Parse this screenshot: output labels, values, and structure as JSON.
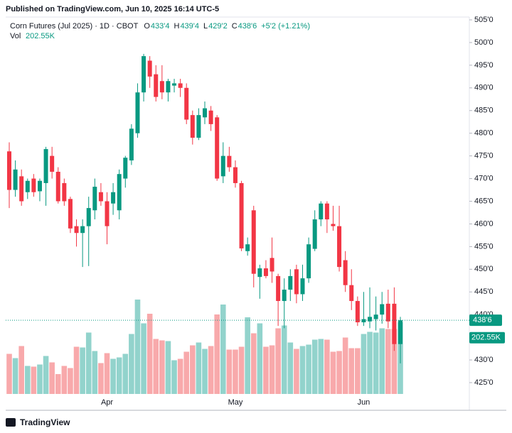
{
  "header": {
    "published": "Published on TradingView.com, Jun 10, 2025 16:14 UTC-5",
    "symbol": "Corn Futures (Jul 2025) · 1D · CBOT",
    "ohlc": [
      {
        "key": "O",
        "value": "433'4"
      },
      {
        "key": "H",
        "value": "439'4"
      },
      {
        "key": "L",
        "value": "429'2"
      },
      {
        "key": "C",
        "value": "438'6"
      }
    ],
    "change": "+5'2 (+1.21%)",
    "volume_key": "Vol",
    "volume_value": "202.55K"
  },
  "chart_data": {
    "type": "candlestick",
    "categories": [
      null,
      null,
      null,
      null,
      null,
      null,
      null,
      null,
      null,
      null,
      null,
      null,
      null,
      null,
      null,
      null,
      "Apr",
      null,
      null,
      null,
      null,
      null,
      null,
      null,
      null,
      null,
      null,
      null,
      null,
      null,
      null,
      null,
      null,
      null,
      null,
      null,
      null,
      "May",
      null,
      null,
      null,
      null,
      null,
      null,
      null,
      null,
      null,
      null,
      null,
      null,
      null,
      null,
      null,
      null,
      null,
      null,
      null,
      null,
      "Jun",
      null,
      null,
      null,
      null,
      null,
      null
    ],
    "open": [
      476,
      467.5,
      470.5,
      467,
      470,
      467.2,
      469,
      475,
      471.5,
      469,
      465.5,
      459.5,
      458,
      459.5,
      463,
      467,
      465,
      464.5,
      463,
      470,
      474,
      480,
      489,
      496,
      493,
      491.5,
      489,
      490.5,
      491,
      490,
      484,
      479,
      483.5,
      485,
      483.5,
      470.5,
      475,
      472.5,
      469,
      454,
      463,
      448.3,
      450.2,
      452.5,
      448.5,
      443,
      445.5,
      450,
      444.5,
      448,
      454.5,
      461,
      464.5,
      460,
      459.5,
      452,
      446.5,
      443,
      438.3,
      438.5,
      439,
      440,
      442.4,
      442.4,
      433.5
    ],
    "high": [
      478,
      474,
      472,
      470,
      471,
      470,
      477,
      477,
      472.5,
      470,
      466,
      461,
      461,
      466,
      470,
      469,
      467,
      469,
      472,
      475,
      482,
      491,
      497.5,
      497,
      495,
      495,
      492,
      492,
      492,
      491,
      485,
      485.5,
      487,
      486,
      484,
      478,
      477,
      474,
      469.5,
      457,
      464,
      451,
      452,
      457,
      449,
      448,
      450,
      451,
      451,
      457,
      463,
      465,
      465,
      464,
      464,
      454,
      450,
      444,
      445,
      446,
      444,
      445,
      445.5,
      446,
      439.5
    ],
    "low": [
      463.5,
      466,
      464,
      465.5,
      466,
      465,
      464,
      470,
      464.5,
      464,
      458,
      455,
      450.5,
      450.7,
      461,
      464,
      455.5,
      462,
      461,
      468,
      473,
      479,
      487,
      490,
      487,
      487.5,
      487,
      489,
      488,
      482,
      477.5,
      478.5,
      482,
      480.5,
      469.5,
      469,
      471.5,
      468,
      454,
      453,
      446,
      443.5,
      448,
      447,
      437.5,
      437,
      443,
      442.5,
      443,
      447,
      454,
      459.5,
      458,
      458.5,
      449.5,
      445,
      441,
      437.5,
      437.5,
      437,
      436.5,
      438,
      437,
      432,
      429.25
    ],
    "close": [
      467.5,
      472,
      465,
      469.5,
      467,
      469.5,
      476.5,
      471.5,
      465,
      465,
      459,
      458,
      459.5,
      463.5,
      468.2,
      465,
      459.5,
      467,
      471,
      474.6,
      481,
      489,
      497,
      492.5,
      488,
      489,
      491.5,
      491,
      490,
      483,
      479,
      484,
      485.5,
      482,
      470,
      475,
      472.5,
      469,
      454.6,
      455.5,
      449,
      450.2,
      448.5,
      449.5,
      443,
      445.5,
      448.5,
      444.5,
      448,
      455.5,
      461,
      464.5,
      461,
      459.5,
      450.5,
      446.5,
      443,
      438.3,
      439,
      439.5,
      440,
      442.3,
      438.5,
      433.5,
      438.75
    ],
    "volume": [
      113000,
      101000,
      135000,
      79000,
      77000,
      83000,
      107000,
      89000,
      56000,
      79000,
      73000,
      133000,
      131000,
      173000,
      121000,
      87000,
      115000,
      99000,
      103000,
      113000,
      169000,
      266000,
      199000,
      226000,
      155000,
      151000,
      149000,
      95000,
      99000,
      119000,
      137000,
      145000,
      127000,
      135000,
      224000,
      252000,
      125000,
      125000,
      133000,
      216000,
      171000,
      199000,
      133000,
      137000,
      185000,
      193000,
      145000,
      127000,
      135000,
      139000,
      153000,
      155000,
      153000,
      119000,
      121000,
      159000,
      129000,
      129000,
      169000,
      175000,
      173000,
      185000,
      183000,
      183000,
      202550
    ],
    "volume_label": "202.55K",
    "last_price_label": "438'6",
    "up_color": "#089981",
    "down_color": "#f23645",
    "volume_up_color": "#92d3cc",
    "volume_down_color": "#f8a9ab",
    "ylim": [
      423.5,
      506.5
    ],
    "yticks": [
      {
        "value": 425,
        "label": "425'0"
      },
      {
        "value": 430,
        "label": "430'0"
      },
      {
        "value": 435,
        "label": "435'0"
      },
      {
        "value": 440,
        "label": "440'0"
      },
      {
        "value": 445,
        "label": "445'0"
      },
      {
        "value": 450,
        "label": "450'0"
      },
      {
        "value": 455,
        "label": "455'0"
      },
      {
        "value": 460,
        "label": "460'0"
      },
      {
        "value": 465,
        "label": "465'0"
      },
      {
        "value": 470,
        "label": "470'0"
      },
      {
        "value": 475,
        "label": "475'0"
      },
      {
        "value": 480,
        "label": "480'0"
      },
      {
        "value": 485,
        "label": "485'0"
      },
      {
        "value": 490,
        "label": "490'0"
      },
      {
        "value": 495,
        "label": "495'0"
      },
      {
        "value": 500,
        "label": "500'0"
      },
      {
        "value": 505,
        "label": "505'0"
      }
    ],
    "grid": false
  },
  "footer": {
    "brand": "TradingView"
  }
}
